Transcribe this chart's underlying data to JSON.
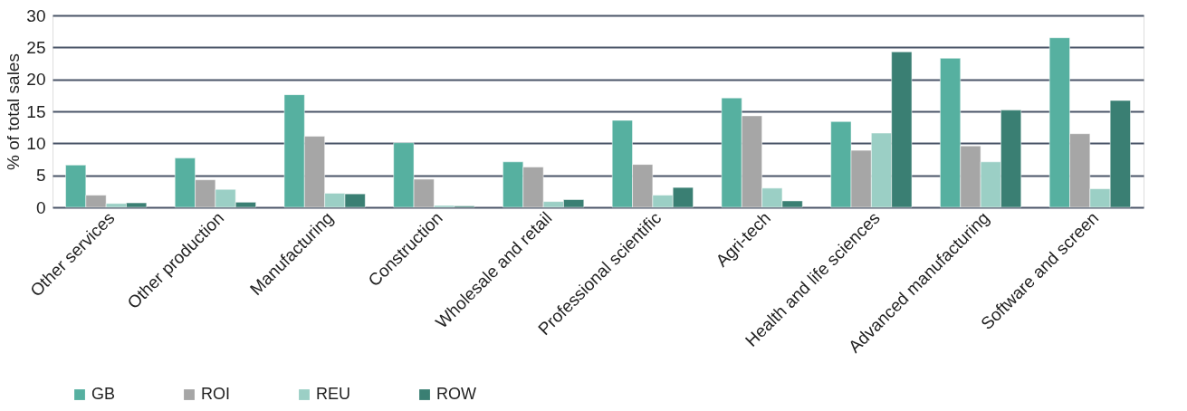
{
  "chart_data": {
    "type": "bar",
    "ylabel": "% of total sales",
    "categories": [
      "Other services",
      "Other production",
      "Manufacturing",
      "Construction",
      "Wholesale and retail",
      "Professional scientific",
      "Agri-tech",
      "Health and life sciences",
      "Advanced manufacturing",
      "Software and screen"
    ],
    "series": [
      {
        "name": "GB",
        "color": "#56b0a0",
        "values": [
          6.6,
          7.7,
          17.6,
          10.1,
          7.1,
          13.6,
          17.1,
          13.4,
          23.3,
          26.5
        ]
      },
      {
        "name": "ROI",
        "color": "#a6a6a6",
        "values": [
          1.9,
          4.3,
          11.1,
          4.4,
          6.3,
          6.7,
          14.3,
          8.9,
          9.6,
          11.5
        ]
      },
      {
        "name": "REU",
        "color": "#9bcfc5",
        "values": [
          0.6,
          2.8,
          2.2,
          0.3,
          0.9,
          1.9,
          3.0,
          11.6,
          7.1,
          2.9
        ]
      },
      {
        "name": "ROW",
        "color": "#3a7f73",
        "values": [
          0.7,
          0.8,
          2.1,
          0.2,
          1.2,
          3.1,
          1.0,
          24.3,
          15.2,
          16.7
        ]
      }
    ],
    "ylim": [
      0,
      30
    ],
    "yticks": [
      0,
      5,
      10,
      15,
      20,
      25,
      30
    ],
    "grid": "y",
    "legend": "bottom left"
  }
}
